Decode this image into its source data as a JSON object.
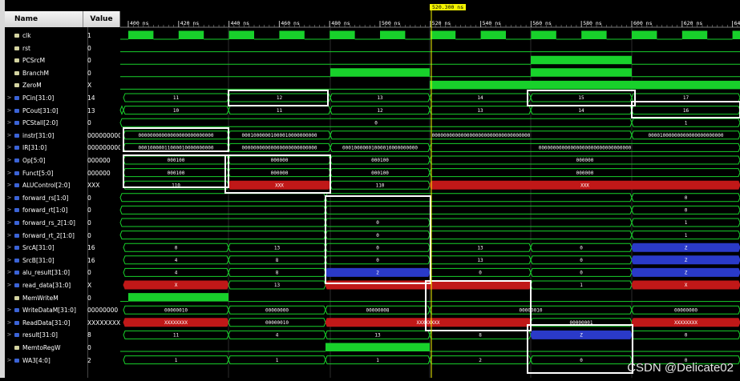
{
  "headers": {
    "name": "Name",
    "value": "Value"
  },
  "cursor_time": "520.300 ns",
  "watermark": "CSDN @Delicate02",
  "timeline": [
    "400 ns",
    "420 ns",
    "440 ns",
    "460 ns",
    "480 ns",
    "500 ns",
    "520 ns",
    "540 ns",
    "560 ns",
    "580 ns",
    "600 ns",
    "620 ns",
    "64"
  ],
  "colors": {
    "wave": "#18d12b",
    "bus": "#18d12b",
    "undefined": "#c01818",
    "highz": "#2a3ac8",
    "highlight_box": "#ffffff",
    "cursor": "#f5f500",
    "cursor_label_bg": "#f5f500"
  },
  "signals": [
    {
      "name": "clk",
      "value": "1",
      "bus": false,
      "expand": ""
    },
    {
      "name": "rst",
      "value": "0",
      "bus": false,
      "expand": ""
    },
    {
      "name": "PCSrcM",
      "value": "0",
      "bus": false,
      "expand": ""
    },
    {
      "name": "BranchM",
      "value": "0",
      "bus": false,
      "expand": ""
    },
    {
      "name": "ZeroM",
      "value": "X",
      "bus": false,
      "expand": ""
    },
    {
      "name": "PCin[31:0]",
      "value": "14",
      "bus": true,
      "expand": ">"
    },
    {
      "name": "PCout[31:0]",
      "value": "13",
      "bus": true,
      "expand": ">"
    },
    {
      "name": "PCStall[2:0]",
      "value": "0",
      "bus": true,
      "expand": ">"
    },
    {
      "name": "instr[31:0]",
      "value": "000000000",
      "bus": true,
      "expand": ">"
    },
    {
      "name": "IR[31:0]",
      "value": "000000000",
      "bus": true,
      "expand": ">"
    },
    {
      "name": "Op[5:0]",
      "value": "000000",
      "bus": true,
      "expand": ">"
    },
    {
      "name": "Funct[5:0]",
      "value": "000000",
      "bus": true,
      "expand": ">"
    },
    {
      "name": "ALUControl[2:0]",
      "value": "XXX",
      "bus": true,
      "expand": ">"
    },
    {
      "name": "forward_rs[1:0]",
      "value": "0",
      "bus": true,
      "expand": ">"
    },
    {
      "name": "forward_rt[1:0]",
      "value": "0",
      "bus": true,
      "expand": ">"
    },
    {
      "name": "forward_rs_2[1:0]",
      "value": "0",
      "bus": true,
      "expand": ">"
    },
    {
      "name": "forward_rt_2[1:0]",
      "value": "0",
      "bus": true,
      "expand": ">"
    },
    {
      "name": "SrcA[31:0]",
      "value": "16",
      "bus": true,
      "expand": ">"
    },
    {
      "name": "SrcB[31:0]",
      "value": "16",
      "bus": true,
      "expand": ">"
    },
    {
      "name": "alu_result[31:0]",
      "value": "0",
      "bus": true,
      "expand": ">"
    },
    {
      "name": "read_data[31:0]",
      "value": "X",
      "bus": true,
      "expand": ">"
    },
    {
      "name": "MemWriteM",
      "value": "0",
      "bus": false,
      "expand": ""
    },
    {
      "name": "WriteDataM[31:0]",
      "value": "00000000",
      "bus": true,
      "expand": ">"
    },
    {
      "name": "ReadData[31:0]",
      "value": "XXXXXXXX",
      "bus": true,
      "expand": ">"
    },
    {
      "name": "result[31:0]",
      "value": "8",
      "bus": true,
      "expand": ">"
    },
    {
      "name": "MemtoRegW",
      "value": "0",
      "bus": false,
      "expand": ""
    },
    {
      "name": "WA3[4:0]",
      "value": "2",
      "bus": true,
      "expand": ">"
    }
  ]
}
